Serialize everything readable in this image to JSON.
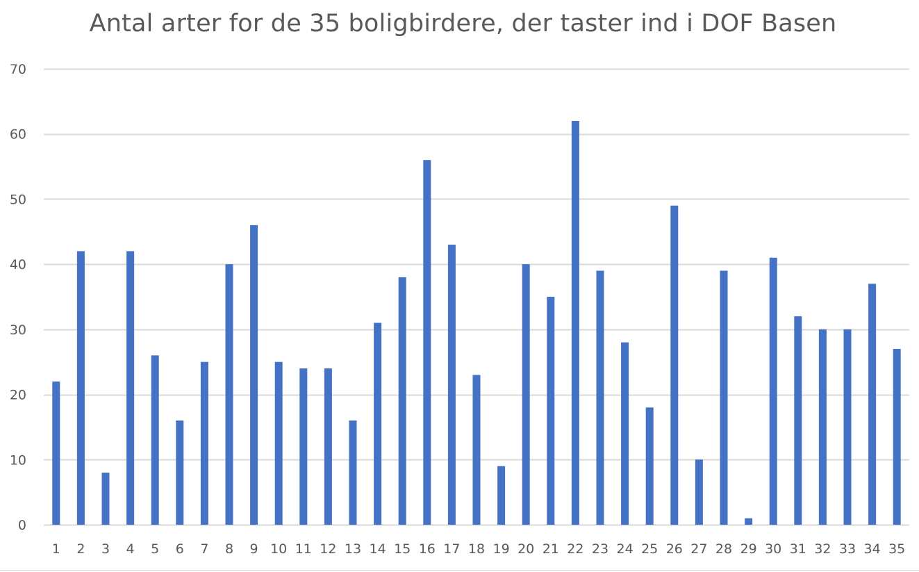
{
  "chart_data": {
    "type": "bar",
    "title": "Antal arter for de 35 boligbirdere, der taster ind i DOF Basen",
    "xlabel": "",
    "ylabel": "",
    "categories": [
      "1",
      "2",
      "3",
      "4",
      "5",
      "6",
      "7",
      "8",
      "9",
      "10",
      "11",
      "12",
      "13",
      "14",
      "15",
      "16",
      "17",
      "18",
      "19",
      "20",
      "21",
      "22",
      "23",
      "24",
      "25",
      "26",
      "27",
      "28",
      "29",
      "30",
      "31",
      "32",
      "33",
      "34",
      "35"
    ],
    "values": [
      22,
      42,
      8,
      42,
      26,
      16,
      25,
      40,
      46,
      25,
      24,
      24,
      16,
      31,
      38,
      56,
      43,
      23,
      9,
      40,
      35,
      62,
      39,
      28,
      18,
      49,
      10,
      39,
      1,
      41,
      32,
      30,
      30,
      37,
      27
    ],
    "ylim": [
      0,
      70
    ],
    "yticks": [
      0,
      10,
      20,
      30,
      40,
      50,
      60,
      70
    ],
    "grid": true,
    "legend": "none",
    "colors": {
      "bar": "#4472c4",
      "grid": "#d9d9d9",
      "text": "#595959"
    }
  }
}
